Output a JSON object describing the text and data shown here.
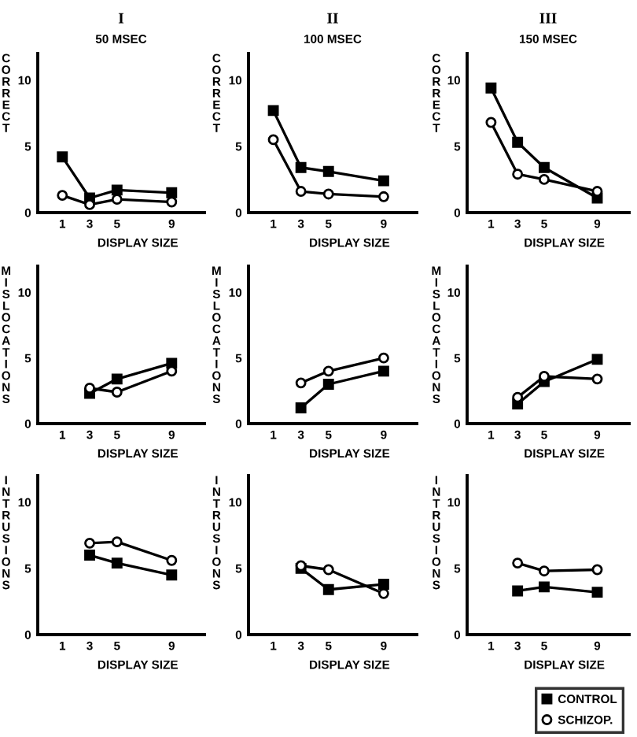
{
  "chart_data": [
    {
      "type": "line",
      "title": "I",
      "subtitle": "50 MSEC",
      "ylabel": "CORRECT",
      "xlabel": "DISPLAY SIZE",
      "xlim": [
        -0.8,
        11.4
      ],
      "ylim": [
        0,
        12
      ],
      "xticks": [
        1,
        3,
        5,
        9
      ],
      "yticks": [
        0,
        5,
        10
      ],
      "grid": false,
      "legend": false,
      "series": [
        {
          "color": "#000000",
          "marker": "square",
          "x": [
            1,
            3,
            5,
            9
          ],
          "values": [
            4.2,
            1.1,
            1.7,
            1.5
          ]
        },
        {
          "color": "#000000",
          "marker": "circle",
          "x": [
            1,
            3,
            5,
            9
          ],
          "values": [
            1.3,
            0.6,
            1.0,
            0.8
          ]
        }
      ]
    },
    {
      "type": "line",
      "title": "II",
      "subtitle": "100 MSEC",
      "ylabel": "CORRECT",
      "xlabel": "DISPLAY SIZE",
      "xlim": [
        -0.8,
        11.4
      ],
      "ylim": [
        0,
        12
      ],
      "xticks": [
        1,
        3,
        5,
        9
      ],
      "yticks": [
        0,
        5,
        10
      ],
      "grid": false,
      "legend": false,
      "series": [
        {
          "color": "#000000",
          "marker": "square",
          "x": [
            1,
            3,
            5,
            9
          ],
          "values": [
            7.7,
            3.4,
            3.1,
            2.4
          ]
        },
        {
          "color": "#000000",
          "marker": "circle",
          "x": [
            1,
            3,
            5,
            9
          ],
          "values": [
            5.5,
            1.6,
            1.4,
            1.2
          ]
        }
      ]
    },
    {
      "type": "line",
      "title": "III",
      "subtitle": "150 MSEC",
      "ylabel": "CORRECT",
      "xlabel": "DISPLAY SIZE",
      "xlim": [
        -0.8,
        11.4
      ],
      "ylim": [
        0,
        12
      ],
      "xticks": [
        1,
        3,
        5,
        9
      ],
      "yticks": [
        0,
        5,
        10
      ],
      "grid": false,
      "legend": false,
      "series": [
        {
          "color": "#000000",
          "marker": "square",
          "x": [
            1,
            3,
            5,
            9
          ],
          "values": [
            9.4,
            5.3,
            3.4,
            1.1
          ]
        },
        {
          "color": "#000000",
          "marker": "circle",
          "x": [
            1,
            3,
            5,
            9
          ],
          "values": [
            6.8,
            2.9,
            2.5,
            1.6
          ]
        }
      ]
    },
    {
      "type": "line",
      "ylabel": "MISLOCATIONS",
      "xlabel": "DISPLAY SIZE",
      "xlim": [
        -0.8,
        11.4
      ],
      "ylim": [
        0,
        12
      ],
      "xticks": [
        1,
        3,
        5,
        9
      ],
      "yticks": [
        0,
        5,
        10
      ],
      "grid": false,
      "legend": false,
      "series": [
        {
          "color": "#000000",
          "marker": "square",
          "x": [
            3,
            5,
            9
          ],
          "values": [
            2.3,
            3.4,
            4.6
          ]
        },
        {
          "color": "#000000",
          "marker": "circle",
          "x": [
            3,
            5,
            9
          ],
          "values": [
            2.7,
            2.4,
            4.0
          ]
        }
      ]
    },
    {
      "type": "line",
      "ylabel": "MISLOCATIONS",
      "xlabel": "DISPLAY SIZE",
      "xlim": [
        -0.8,
        11.4
      ],
      "ylim": [
        0,
        12
      ],
      "xticks": [
        1,
        3,
        5,
        9
      ],
      "yticks": [
        0,
        5,
        10
      ],
      "grid": false,
      "legend": false,
      "series": [
        {
          "color": "#000000",
          "marker": "square",
          "x": [
            3,
            5,
            9
          ],
          "values": [
            1.2,
            3.0,
            4.0
          ]
        },
        {
          "color": "#000000",
          "marker": "circle",
          "x": [
            3,
            5,
            9
          ],
          "values": [
            3.1,
            4.0,
            5.0
          ]
        }
      ]
    },
    {
      "type": "line",
      "ylabel": "MISLOCATIONS",
      "xlabel": "DISPLAY SIZE",
      "xlim": [
        -0.8,
        11.4
      ],
      "ylim": [
        0,
        12
      ],
      "xticks": [
        1,
        3,
        5,
        9
      ],
      "yticks": [
        0,
        5,
        10
      ],
      "grid": false,
      "legend": false,
      "series": [
        {
          "color": "#000000",
          "marker": "square",
          "x": [
            3,
            5,
            9
          ],
          "values": [
            1.5,
            3.2,
            4.9
          ]
        },
        {
          "color": "#000000",
          "marker": "circle",
          "x": [
            3,
            5,
            9
          ],
          "values": [
            2.0,
            3.6,
            3.4
          ]
        }
      ]
    },
    {
      "type": "line",
      "ylabel": "INTRUSIONS",
      "xlabel": "DISPLAY SIZE",
      "xlim": [
        -0.8,
        11.4
      ],
      "ylim": [
        0,
        12
      ],
      "xticks": [
        1,
        3,
        5,
        9
      ],
      "yticks": [
        0,
        5,
        10
      ],
      "grid": false,
      "legend": false,
      "series": [
        {
          "color": "#000000",
          "marker": "square",
          "x": [
            3,
            5,
            9
          ],
          "values": [
            6.0,
            5.4,
            4.5
          ]
        },
        {
          "color": "#000000",
          "marker": "circle",
          "x": [
            3,
            5,
            9
          ],
          "values": [
            6.9,
            7.0,
            5.6
          ]
        }
      ]
    },
    {
      "type": "line",
      "ylabel": "INTRUSIONS",
      "xlabel": "DISPLAY SIZE",
      "xlim": [
        -0.8,
        11.4
      ],
      "ylim": [
        0,
        12
      ],
      "xticks": [
        1,
        3,
        5,
        9
      ],
      "yticks": [
        0,
        5,
        10
      ],
      "grid": false,
      "legend": false,
      "series": [
        {
          "color": "#000000",
          "marker": "square",
          "x": [
            3,
            5,
            9
          ],
          "values": [
            5.0,
            3.4,
            3.8
          ]
        },
        {
          "color": "#000000",
          "marker": "circle",
          "x": [
            3,
            5,
            9
          ],
          "values": [
            5.2,
            4.9,
            3.1
          ]
        }
      ]
    },
    {
      "type": "line",
      "ylabel": "INTRUSIONS",
      "xlabel": "DISPLAY SIZE",
      "xlim": [
        -0.8,
        11.4
      ],
      "ylim": [
        0,
        12
      ],
      "xticks": [
        1,
        3,
        5,
        9
      ],
      "yticks": [
        0,
        5,
        10
      ],
      "grid": false,
      "legend": "bottom right",
      "series": [
        {
          "name": "CONTROL",
          "color": "#000000",
          "marker": "square",
          "x": [
            3,
            5,
            9
          ],
          "values": [
            3.3,
            3.6,
            3.2
          ]
        },
        {
          "name": "SCHIZOP.",
          "color": "#000000",
          "marker": "circle",
          "x": [
            3,
            5,
            9
          ],
          "values": [
            5.4,
            4.8,
            4.9
          ]
        }
      ]
    }
  ]
}
